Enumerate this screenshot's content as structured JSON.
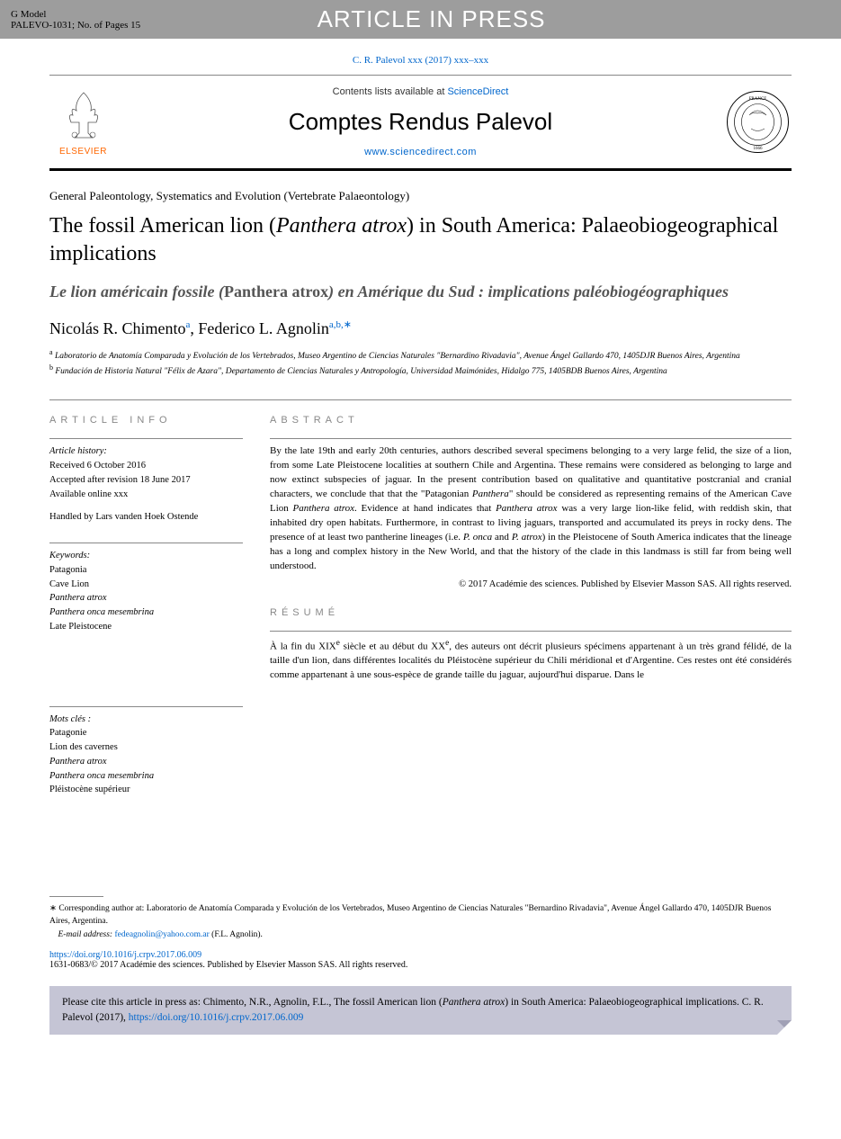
{
  "header": {
    "g_model": "G Model",
    "ref": "PALEVO-1031;   No. of Pages 15",
    "banner": "ARTICLE IN PRESS"
  },
  "journal_ref": "C. R. Palevol xxx (2017) xxx–xxx",
  "journal_box": {
    "elsevier": "ELSEVIER",
    "contents_prefix": "Contents lists available at ",
    "contents_link": "ScienceDirect",
    "title": "Comptes Rendus Palevol",
    "url": "www.sciencedirect.com"
  },
  "article": {
    "section": "General Paleontology, Systematics and Evolution (Vertebrate Palaeontology)",
    "title_1": "The fossil American lion (",
    "title_italic": "Panthera atrox",
    "title_2": ") in South America: Palaeobiogeographical implications",
    "subtitle_1": "Le lion américain fossile (",
    "subtitle_roman": "Panthera atrox",
    "subtitle_2": ") en Amérique du Sud : implications paléobiogéographiques",
    "author1": "Nicolás R. Chimento",
    "author1_sup": "a",
    "author2": "Federico L. Agnolin",
    "author2_sup": "a,b,∗",
    "aff_a_sup": "a",
    "aff_a": " Laboratorio de Anatomía Comparada y Evolución de los Vertebrados, Museo Argentino de Ciencias Naturales \"Bernardino Rivadavia\", Avenue Ángel Gallardo 470, 1405DJR Buenos Aires, Argentina",
    "aff_b_sup": "b",
    "aff_b": " Fundación de Historia Natural \"Félix de Azara\", Departamento de Ciencias Naturales y Antropología, Universidad Maimónides, Hidalgo 775, 1405BDB Buenos Aires, Argentina"
  },
  "info": {
    "heading": "article info",
    "history_label": "Article history:",
    "received": "Received 6 October 2016",
    "accepted": "Accepted after revision 18 June 2017",
    "online": "Available online xxx",
    "handled": "Handled by Lars vanden Hoek Ostende",
    "keywords_label": "Keywords:",
    "keywords": [
      "Patagonia",
      "Cave Lion",
      "Panthera atrox",
      "Panthera onca mesembrina",
      "Late Pleistocene"
    ],
    "motscles_label": "Mots clés :",
    "motscles": [
      "Patagonie",
      "Lion des cavernes",
      "Panthera atrox",
      "Panthera onca mesembrina",
      "Pléistocène supérieur"
    ]
  },
  "abstract": {
    "heading": "abstract",
    "text_parts": [
      {
        "t": "By the late 19th and early 20th centuries, authors described several specimens belonging to a very large felid, the size of a lion, from some Late Pleistocene localities at southern Chile and Argentina. These remains were considered as belonging to large and now extinct subspecies of jaguar. In the present contribution based on qualitative and quantitative postcranial and cranial characters, we conclude that that the \"Patagonian ",
        "i": false
      },
      {
        "t": "Panthera",
        "i": true
      },
      {
        "t": "\" should be considered as representing remains of the American Cave Lion ",
        "i": false
      },
      {
        "t": "Panthera atrox",
        "i": true
      },
      {
        "t": ". Evidence at hand indicates that ",
        "i": false
      },
      {
        "t": "Panthera atrox",
        "i": true
      },
      {
        "t": " was a very large lion-like felid, with reddish skin, that inhabited dry open habitats. Furthermore, in contrast to living jaguars, transported and accumulated its preys in rocky dens. The presence of at least two pantherine lineages (i.e. ",
        "i": false
      },
      {
        "t": "P. onca",
        "i": true
      },
      {
        "t": " and ",
        "i": false
      },
      {
        "t": "P. atrox",
        "i": true
      },
      {
        "t": ") in the Pleistocene of South America indicates that the lineage has a long and complex history in the New World, and that the history of the clade in this landmass is still far from being well understood.",
        "i": false
      }
    ],
    "copyright": "© 2017 Académie des sciences. Published by Elsevier Masson SAS. All rights reserved."
  },
  "resume": {
    "heading": "résumé",
    "text_parts": [
      {
        "t": "À la fin du XIX",
        "i": false
      },
      {
        "t": "e",
        "sup": true
      },
      {
        "t": " siècle et au début du XX",
        "i": false
      },
      {
        "t": "e",
        "sup": true
      },
      {
        "t": ", des auteurs ont décrit plusieurs spécimens appartenant à un très grand félidé, de la taille d'un lion, dans différentes localités du Pléistocène supérieur du Chili méridional et d'Argentine. Ces restes ont été considérés comme appartenant à une sous-espèce de grande taille du jaguar, aujourd'hui disparue. Dans le",
        "i": false
      }
    ]
  },
  "footer": {
    "corr_star": "∗",
    "corr_text": "   Corresponding author at: Laboratorio de Anatomía Comparada y Evolución de los Vertebrados, Museo Argentino de Ciencias Naturales \"Bernardino Rivadavia\", Avenue Ángel Gallardo 470, 1405DJR Buenos Aires, Argentina.",
    "email_label": "E-mail address: ",
    "email": "fedeagnolin@yahoo.com.ar",
    "email_suffix": " (F.L. Agnolin).",
    "doi": "https://doi.org/10.1016/j.crpv.2017.06.009",
    "issn": "1631-0683/© 2017 Académie des sciences. Published by Elsevier Masson SAS. All rights reserved."
  },
  "cite": {
    "prefix": "Please cite this article in press as: Chimento, N.R., Agnolin, F.L., The fossil American lion (",
    "italic": "Panthera atrox",
    "mid": ") in South America: Palaeobiogeographical implications. C. R. Palevol (2017), ",
    "link": "https://doi.org/10.1016/j.crpv.2017.06.009"
  },
  "colors": {
    "header_bg": "#9d9d9d",
    "link": "#0066cc",
    "elsevier": "#ff6600",
    "cite_bg": "#c5c5d5",
    "info_gray": "#888888"
  }
}
